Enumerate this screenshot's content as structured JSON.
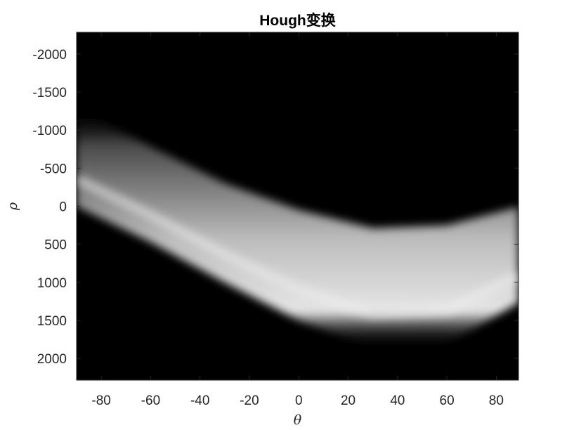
{
  "chart_data": {
    "type": "heatmap",
    "title": "Hough变换",
    "xlabel": "θ",
    "ylabel": "ρ",
    "xlim": [
      -90,
      89
    ],
    "ylim": [
      -2284,
      2284
    ],
    "y_reversed": true,
    "colormap": "gray",
    "x_ticks": [
      -80,
      -60,
      -40,
      -20,
      0,
      20,
      40,
      60,
      80
    ],
    "x_tick_labels": [
      "-80",
      "-60",
      "-40",
      "-20",
      "0",
      "20",
      "40",
      "60",
      "80"
    ],
    "y_ticks": [
      -2000,
      -1500,
      -1000,
      -500,
      0,
      500,
      1000,
      1500,
      2000
    ],
    "y_tick_labels": [
      "-2000",
      "-1500",
      "-1000",
      "-500",
      "0",
      "500",
      "1000",
      "1500",
      "2000"
    ],
    "grid": false,
    "band_edges": {
      "theta": [
        -90,
        -60,
        -30,
        0,
        30,
        60,
        89
      ],
      "rho_upper": [
        -1270,
        -780,
        -300,
        50,
        290,
        250,
        10
      ],
      "rho_lower": [
        0,
        470,
        1000,
        1500,
        1850,
        1800,
        1270
      ]
    }
  },
  "colors": {
    "background": "#000000",
    "band_peak": "#e6e6e6",
    "axes": "#262626"
  }
}
